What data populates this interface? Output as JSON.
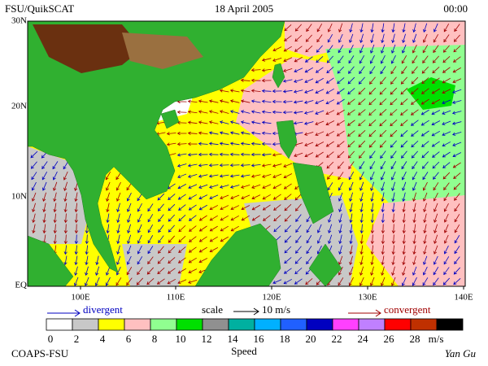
{
  "header": {
    "left": "FSU/QuikSCAT",
    "center": "18 April 2005",
    "right": "00:00"
  },
  "map": {
    "lat_labels": [
      "30N",
      "20N",
      "10N",
      "EQ"
    ],
    "lon_labels": [
      "100E",
      "110E",
      "120E",
      "130E",
      "140E"
    ]
  },
  "legend": {
    "divergent": "divergent",
    "scale": "scale",
    "scale_value": "10 m/s",
    "convergent": "convergent"
  },
  "colorbar": {
    "labels": [
      0,
      2,
      4,
      6,
      8,
      10,
      12,
      14,
      16,
      18,
      20,
      22,
      24,
      26,
      28
    ],
    "unit": "m/s",
    "title": "Speed",
    "colors": [
      "#ffffff",
      "#c8c8c8",
      "#ffff00",
      "#ffc0c0",
      "#90ff90",
      "#00e000",
      "#909090",
      "#00b0a0",
      "#00b0ff",
      "#2060ff",
      "#0000c0",
      "#ff40ff",
      "#c080ff",
      "#ff0000",
      "#c03000",
      "#000000"
    ]
  },
  "footer": {
    "left": "COAPS-FSU",
    "right": "Yan Gu"
  }
}
